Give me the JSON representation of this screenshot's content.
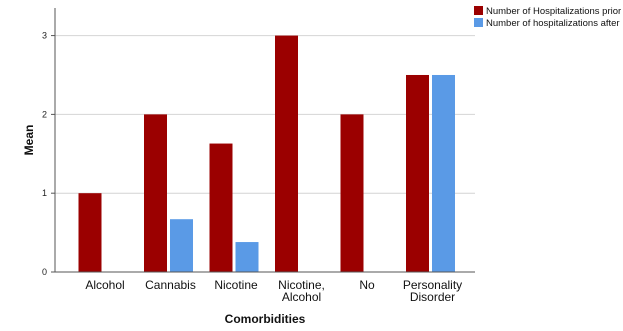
{
  "chart_data": {
    "type": "bar",
    "title": "",
    "xlabel": "Comorbidities",
    "ylabel": "Mean",
    "categories": [
      [
        "Alcohol"
      ],
      [
        "Cannabis"
      ],
      [
        "Nicotine"
      ],
      [
        "Nicotine,",
        "Alcohol"
      ],
      [
        "No"
      ],
      [
        "Personality",
        "Disorder"
      ]
    ],
    "series": [
      {
        "name": "Number of Hospitalizations prior",
        "color": "#9b0000",
        "values": [
          1.0,
          2.0,
          1.63,
          3.0,
          2.0,
          2.5
        ]
      },
      {
        "name": "Number of hospitalizations after",
        "color": "#5a9ae6",
        "values": [
          0,
          0.67,
          0.38,
          0,
          0,
          2.5
        ]
      }
    ],
    "ylim": [
      0,
      3.35
    ],
    "yticks": [
      0,
      1,
      2,
      3
    ],
    "grid": true,
    "legend_position": "top-right"
  }
}
